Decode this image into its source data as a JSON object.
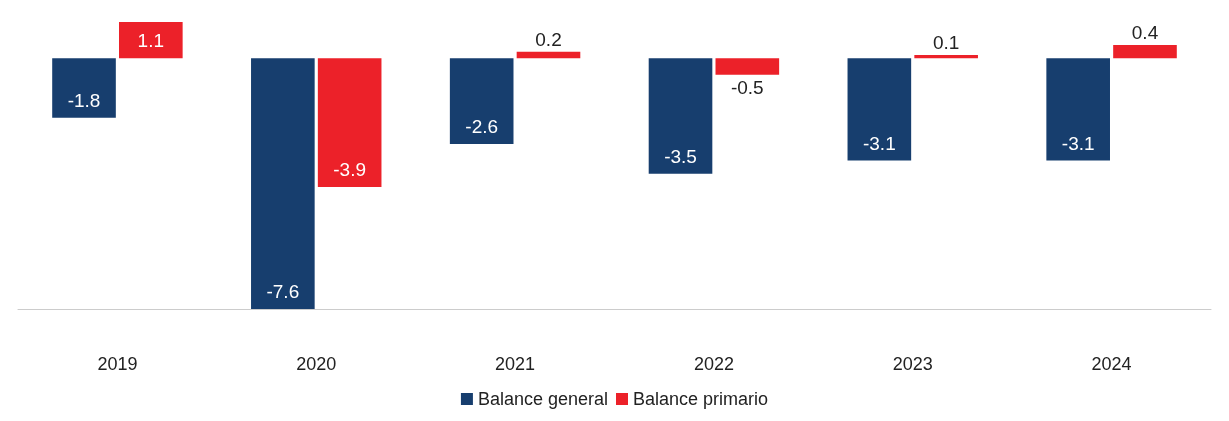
{
  "chart_data": {
    "type": "bar",
    "categories": [
      "2019",
      "2020",
      "2021",
      "2022",
      "2023",
      "2024"
    ],
    "series": [
      {
        "name": "Balance general",
        "color": "#173e6e",
        "values": [
          -1.8,
          -7.6,
          -2.6,
          -3.5,
          -3.1,
          -3.1
        ]
      },
      {
        "name": "Balance primario",
        "color": "#ec2129",
        "values": [
          1.1,
          -3.9,
          0.2,
          -0.5,
          0.1,
          0.4
        ]
      }
    ],
    "data_labels": true,
    "legend": "bottom"
  }
}
